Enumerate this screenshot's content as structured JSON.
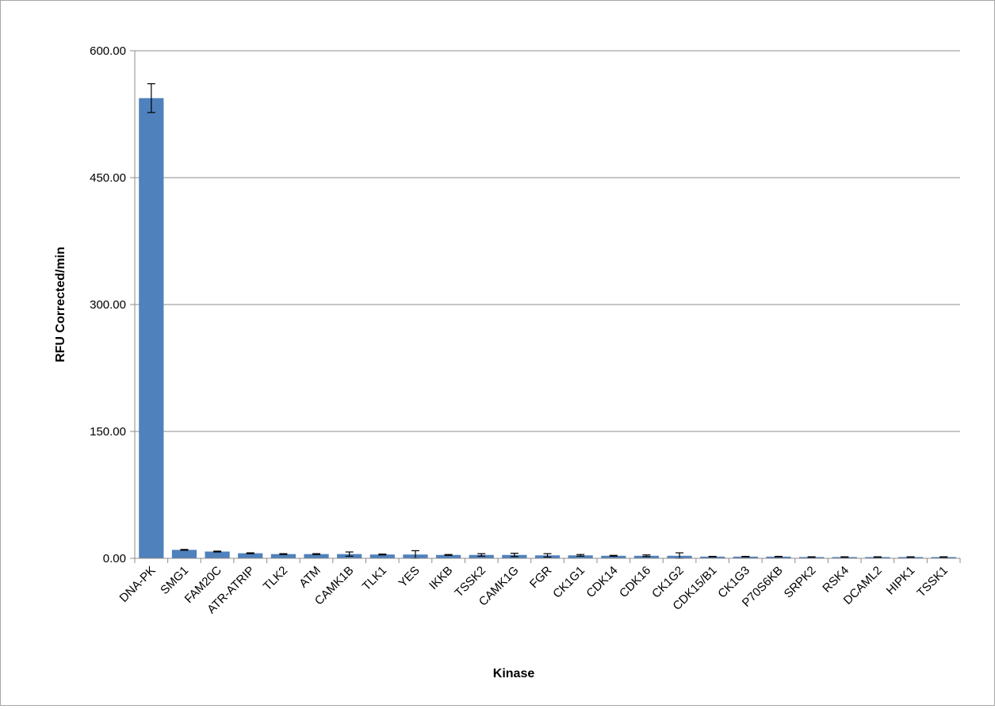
{
  "chart_data": {
    "type": "bar",
    "title": "",
    "xlabel": "Kinase",
    "ylabel": "RFU Corrected/min",
    "ylim": [
      0,
      600
    ],
    "yticks": [
      "0.00",
      "150.00",
      "300.00",
      "450.00",
      "600.00"
    ],
    "grid": true,
    "legend": "none",
    "bar_color": "#4f81bd",
    "categories": [
      "DNA-PK",
      "SMG1",
      "FAM20C",
      "ATR-ATRIP",
      "TLK2",
      "ATM",
      "CAMK1B",
      "TLK1",
      "YES",
      "IKKB",
      "TSSK2",
      "CAMK1G",
      "FGR",
      "CK1G1",
      "CDK14",
      "CDK16",
      "CK1G2",
      "CDK15/B1",
      "CK1G3",
      "P70S6KB",
      "SRPK2",
      "RSK4",
      "DCAML2",
      "HIPK1",
      "TSSK1"
    ],
    "values": [
      544,
      10,
      8,
      6,
      5,
      5,
      5,
      4.5,
      4.5,
      4,
      4,
      4,
      3.5,
      3.5,
      3,
      3,
      3,
      2,
      2,
      2,
      1.5,
      1.5,
      1.5,
      1.5,
      1.5
    ],
    "errors": [
      17,
      0.5,
      0.5,
      0.5,
      0.5,
      0.5,
      2.5,
      0.5,
      4.5,
      0.5,
      1.5,
      2,
      2,
      1,
      0.5,
      1,
      3.5,
      0.3,
      0.3,
      0.3,
      0.3,
      0.3,
      0.3,
      0.3,
      0.3
    ]
  }
}
